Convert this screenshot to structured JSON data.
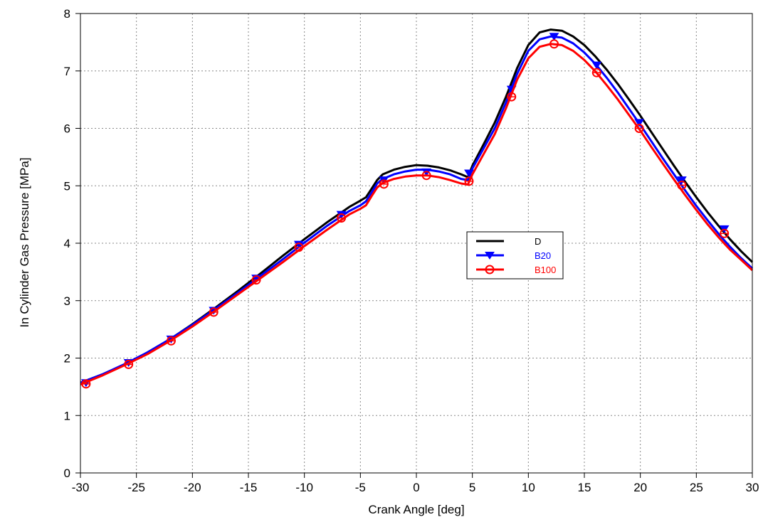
{
  "chart_data": {
    "type": "line",
    "title": "",
    "xlabel": "Crank Angle [deg]",
    "ylabel": "In Cylinder Gas Pressure [MPa]",
    "xlim": [
      -30,
      30
    ],
    "ylim": [
      0,
      8
    ],
    "xticks": [
      -30,
      -25,
      -20,
      -15,
      -10,
      -5,
      0,
      5,
      10,
      15,
      20,
      25,
      30
    ],
    "yticks": [
      0,
      1,
      2,
      3,
      4,
      5,
      6,
      7,
      8
    ],
    "grid": true,
    "legend_placement": "center",
    "series": [
      {
        "name": "D",
        "color": "#000000",
        "marker": "none",
        "x": [
          -30,
          -28,
          -26,
          -24,
          -22,
          -20,
          -18,
          -16,
          -14,
          -12,
          -10,
          -8,
          -6,
          -5,
          -4.5,
          -4,
          -3.5,
          -3,
          -2,
          -1,
          0,
          1,
          2,
          3,
          4,
          4.6,
          5,
          6,
          7,
          8,
          9,
          10,
          11,
          12,
          13,
          14,
          15,
          16,
          17,
          18,
          19,
          20,
          21,
          22,
          23,
          24,
          25,
          26,
          27,
          28,
          29,
          30
        ],
        "y": [
          1.57,
          1.72,
          1.89,
          2.1,
          2.33,
          2.59,
          2.87,
          3.16,
          3.46,
          3.77,
          4.07,
          4.36,
          4.63,
          4.74,
          4.8,
          4.95,
          5.1,
          5.2,
          5.28,
          5.33,
          5.36,
          5.35,
          5.32,
          5.27,
          5.2,
          5.15,
          5.35,
          5.72,
          6.1,
          6.55,
          7.05,
          7.45,
          7.67,
          7.72,
          7.7,
          7.6,
          7.45,
          7.25,
          7.02,
          6.77,
          6.5,
          6.22,
          5.93,
          5.64,
          5.35,
          5.07,
          4.8,
          4.54,
          4.3,
          4.07,
          3.86,
          3.67
        ]
      },
      {
        "name": "B20",
        "color": "#0000ff",
        "marker": "triangle-down",
        "x": [
          -30,
          -28,
          -26,
          -24,
          -22,
          -20,
          -18,
          -16,
          -14,
          -12,
          -10,
          -8,
          -6,
          -5,
          -4.5,
          -4,
          -3.5,
          -3,
          -2,
          -1,
          0,
          1,
          2,
          3,
          4,
          4.6,
          5,
          6,
          7,
          8,
          9,
          10,
          11,
          12,
          13,
          14,
          15,
          16,
          17,
          18,
          19,
          20,
          21,
          22,
          23,
          24,
          25,
          26,
          27,
          28,
          29,
          30
        ],
        "y": [
          1.57,
          1.72,
          1.9,
          2.1,
          2.33,
          2.58,
          2.85,
          3.13,
          3.42,
          3.71,
          4.01,
          4.3,
          4.56,
          4.66,
          4.73,
          4.88,
          5.04,
          5.12,
          5.2,
          5.25,
          5.28,
          5.28,
          5.25,
          5.2,
          5.12,
          5.1,
          5.3,
          5.65,
          6.0,
          6.45,
          6.95,
          7.35,
          7.55,
          7.6,
          7.58,
          7.48,
          7.32,
          7.12,
          6.88,
          6.62,
          6.34,
          6.06,
          5.77,
          5.48,
          5.2,
          4.92,
          4.65,
          4.4,
          4.16,
          3.94,
          3.74,
          3.56
        ],
        "markers_x": [
          -29.5,
          -25.7,
          -21.9,
          -18.1,
          -14.3,
          -10.5,
          -6.7,
          -2.9,
          0.9,
          4.7,
          8.5,
          12.3,
          16.1,
          19.9,
          23.7,
          27.5
        ],
        "markers_y": [
          1.57,
          1.92,
          2.33,
          2.83,
          3.39,
          3.98,
          4.5,
          5.1,
          5.24,
          5.22,
          6.68,
          7.6,
          7.1,
          6.1,
          5.1,
          4.25
        ]
      },
      {
        "name": "B100",
        "color": "#ff0000",
        "marker": "circle",
        "x": [
          -30,
          -28,
          -26,
          -24,
          -22,
          -20,
          -18,
          -16,
          -14,
          -12,
          -10,
          -8,
          -6,
          -5,
          -4.5,
          -4,
          -3.5,
          -3,
          -2,
          -1,
          0,
          1,
          2,
          3,
          4,
          4.6,
          5,
          6,
          7,
          8,
          9,
          10,
          11,
          12,
          13,
          14,
          15,
          16,
          17,
          18,
          19,
          20,
          21,
          22,
          23,
          24,
          25,
          26,
          27,
          28,
          29,
          30
        ],
        "y": [
          1.54,
          1.7,
          1.88,
          2.07,
          2.3,
          2.55,
          2.82,
          3.1,
          3.38,
          3.66,
          3.95,
          4.23,
          4.5,
          4.6,
          4.66,
          4.82,
          4.97,
          5.05,
          5.12,
          5.16,
          5.18,
          5.18,
          5.15,
          5.1,
          5.04,
          5.02,
          5.2,
          5.55,
          5.9,
          6.35,
          6.85,
          7.22,
          7.42,
          7.47,
          7.45,
          7.35,
          7.19,
          6.99,
          6.75,
          6.5,
          6.23,
          5.96,
          5.67,
          5.39,
          5.11,
          4.84,
          4.58,
          4.33,
          4.1,
          3.89,
          3.71,
          3.53
        ],
        "markers_x": [
          -29.5,
          -25.7,
          -21.9,
          -18.1,
          -14.3,
          -10.5,
          -6.7,
          -2.9,
          0.9,
          4.7,
          8.5,
          12.3,
          16.1,
          19.9,
          23.7,
          27.5
        ],
        "markers_y": [
          1.55,
          1.89,
          2.3,
          2.8,
          3.36,
          3.93,
          4.44,
          5.03,
          5.18,
          5.08,
          6.55,
          7.47,
          6.97,
          6.0,
          5.01,
          4.17
        ]
      }
    ]
  }
}
